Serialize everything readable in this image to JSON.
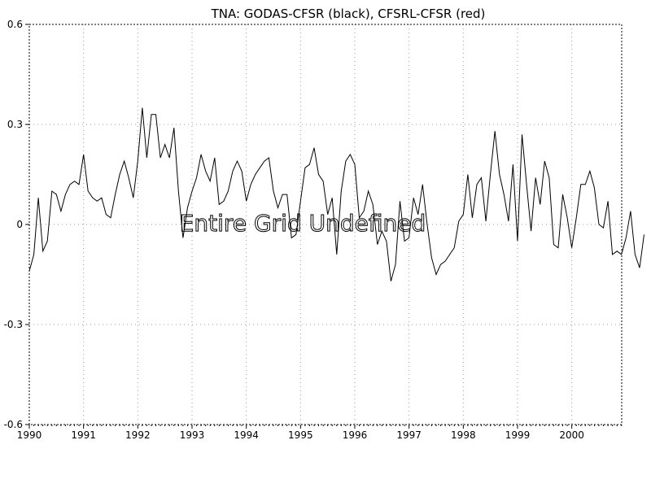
{
  "chart_data": {
    "type": "line",
    "title": "TNA: GODAS-CFSR (black), CFSRL-CFSR (red)",
    "xlabel": "",
    "ylabel": "",
    "xlim": [
      1990.0,
      2000.92
    ],
    "ylim": [
      -0.6,
      0.6
    ],
    "x_ticks": [
      "1990",
      "1991",
      "1992",
      "1993",
      "1994",
      "1995",
      "1996",
      "1997",
      "1998",
      "1999",
      "2000"
    ],
    "y_ticks": [
      "-0.6",
      "-0.3",
      "0",
      "0.3",
      "0.6"
    ],
    "grid": true,
    "overlay_text": "Entire Grid Undefined",
    "series": [
      {
        "color": "#000000",
        "x_start": 1990.0,
        "x_step": 0.08333,
        "values": [
          -0.14,
          -0.09,
          0.08,
          -0.08,
          -0.05,
          0.1,
          0.09,
          0.04,
          0.09,
          0.12,
          0.13,
          0.12,
          0.21,
          0.1,
          0.08,
          0.07,
          0.08,
          0.03,
          0.02,
          0.09,
          0.15,
          0.19,
          0.14,
          0.08,
          0.19,
          0.35,
          0.2,
          0.33,
          0.33,
          0.2,
          0.24,
          0.2,
          0.29,
          0.1,
          -0.04,
          0.05,
          0.1,
          0.14,
          0.21,
          0.16,
          0.13,
          0.2,
          0.06,
          0.07,
          0.1,
          0.16,
          0.19,
          0.16,
          0.07,
          0.12,
          0.15,
          0.17,
          0.19,
          0.2,
          0.1,
          0.05,
          0.09,
          0.09,
          -0.04,
          -0.03,
          0.07,
          0.17,
          0.18,
          0.23,
          0.15,
          0.13,
          0.03,
          0.08,
          -0.09,
          0.1,
          0.19,
          0.21,
          0.18,
          0.02,
          0.04,
          0.1,
          0.06,
          -0.06,
          -0.02,
          -0.05,
          -0.17,
          -0.12,
          0.07,
          -0.05,
          -0.04,
          0.08,
          0.03,
          0.12,
          0.0,
          -0.1,
          -0.15,
          -0.12,
          -0.11,
          -0.09,
          -0.07,
          0.01,
          0.03,
          0.15,
          0.02,
          0.12,
          0.14,
          0.01,
          0.15,
          0.28,
          0.15,
          0.09,
          0.01,
          0.18,
          -0.05,
          0.27,
          0.12,
          -0.02,
          0.14,
          0.06,
          0.19,
          0.14,
          -0.06,
          -0.07,
          0.09,
          0.02,
          -0.07,
          0.02,
          0.12,
          0.12,
          0.16,
          0.11,
          0.0,
          -0.01,
          0.07,
          -0.09,
          -0.08,
          -0.09,
          -0.04,
          0.04,
          -0.09,
          -0.13,
          -0.03
        ]
      }
    ]
  }
}
